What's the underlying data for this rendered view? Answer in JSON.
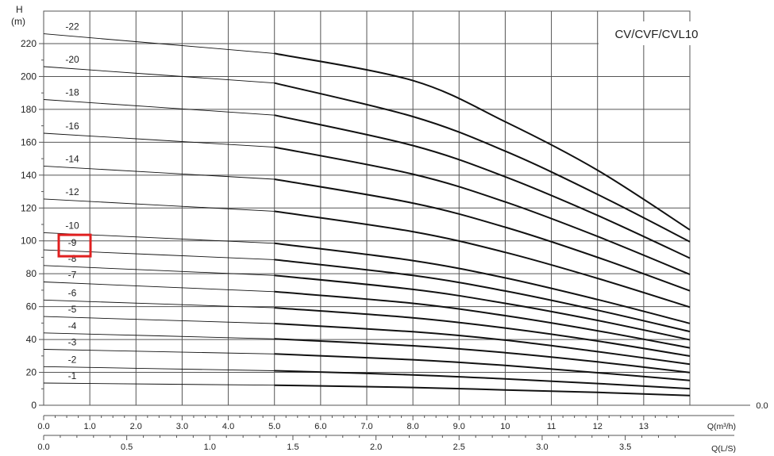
{
  "chart_data": {
    "type": "line",
    "title": "CV/CVF/CVL10",
    "ylabel": "H",
    "yunit": "(m)",
    "xlabel": "Q(m³/h)",
    "x2label": "Q(L/S)",
    "xlim": [
      0,
      14
    ],
    "ylim": [
      0,
      230
    ],
    "yticks": [
      "0",
      "20",
      "40",
      "60",
      "80",
      "100",
      "120",
      "140",
      "160",
      "180",
      "200",
      "220"
    ],
    "xticks": [
      "0.0",
      "1.0",
      "2.0",
      "3.0",
      "4.0",
      "5.0",
      "6.0",
      "7.0",
      "8.0",
      "9.0",
      "10",
      "11",
      "12",
      "13"
    ],
    "xticks_end": "0.0",
    "x2ticks": [
      "0.0",
      "0.5",
      "1.0",
      "1.5",
      "2.0",
      "2.5",
      "3.0",
      "3.5"
    ],
    "x2ticks_values": [
      0,
      0.5,
      1.0,
      1.5,
      2.0,
      2.5,
      3.0,
      3.5
    ],
    "grid": true,
    "highlight": "-9",
    "highlight_color": "#e02020",
    "line_color": "#111111",
    "grid_color": "#555555",
    "operating_range_start": 5.0,
    "series": [
      {
        "name": "-1",
        "values": [
          [
            0,
            13.5
          ],
          [
            5,
            12.2
          ],
          [
            8,
            10.8
          ],
          [
            10,
            9.3
          ],
          [
            12,
            7.8
          ],
          [
            14,
            5.9
          ]
        ]
      },
      {
        "name": "-2",
        "values": [
          [
            0,
            23.5
          ],
          [
            5,
            21.0
          ],
          [
            8,
            18.5
          ],
          [
            10,
            16.0
          ],
          [
            12,
            13.2
          ],
          [
            14,
            10.1
          ]
        ]
      },
      {
        "name": "-3",
        "values": [
          [
            0,
            34
          ],
          [
            5,
            31.2
          ],
          [
            8,
            27.7
          ],
          [
            10,
            24.2
          ],
          [
            12,
            19.8
          ],
          [
            14,
            15.1
          ]
        ]
      },
      {
        "name": "-4",
        "values": [
          [
            0,
            44
          ],
          [
            5,
            40.4
          ],
          [
            8,
            36.2
          ],
          [
            10,
            32.0
          ],
          [
            12,
            26.4
          ],
          [
            14,
            19.9
          ]
        ]
      },
      {
        "name": "-5",
        "values": [
          [
            0,
            54
          ],
          [
            5,
            49.7
          ],
          [
            8,
            44.7
          ],
          [
            10,
            39.6
          ],
          [
            12,
            32.6
          ],
          [
            14,
            25.0
          ]
        ]
      },
      {
        "name": "-6",
        "values": [
          [
            0,
            64
          ],
          [
            5,
            59.3
          ],
          [
            8,
            53.2
          ],
          [
            10,
            47.0
          ],
          [
            12,
            39.1
          ],
          [
            14,
            29.9
          ]
        ]
      },
      {
        "name": "-7",
        "values": [
          [
            0,
            75
          ],
          [
            5,
            69.1
          ],
          [
            8,
            62.0
          ],
          [
            10,
            54.5
          ],
          [
            12,
            45.3
          ],
          [
            14,
            34.9
          ]
        ]
      },
      {
        "name": "-8",
        "values": [
          [
            0,
            85
          ],
          [
            5,
            79.0
          ],
          [
            8,
            70.5
          ],
          [
            10,
            62.0
          ],
          [
            12,
            51.6
          ],
          [
            14,
            39.8
          ]
        ]
      },
      {
        "name": "-9",
        "values": [
          [
            0,
            94.5
          ],
          [
            5,
            88.6
          ],
          [
            8,
            79.0
          ],
          [
            10,
            69.5
          ],
          [
            12,
            57.8
          ],
          [
            14,
            44.8
          ]
        ]
      },
      {
        "name": "-10",
        "values": [
          [
            0,
            105
          ],
          [
            5,
            98.5
          ],
          [
            8,
            88.0
          ],
          [
            10,
            77.5
          ],
          [
            12,
            64.3
          ],
          [
            14,
            49.8
          ]
        ]
      },
      {
        "name": "-12",
        "values": [
          [
            0,
            125.5
          ],
          [
            5,
            118.0
          ],
          [
            8,
            105.6
          ],
          [
            10,
            93.0
          ],
          [
            12,
            77.2
          ],
          [
            14,
            59.7
          ]
        ]
      },
      {
        "name": "-14",
        "values": [
          [
            0,
            145.5
          ],
          [
            5,
            137.5
          ],
          [
            8,
            123.0
          ],
          [
            10,
            108.3
          ],
          [
            12,
            90.0
          ],
          [
            14,
            69.6
          ]
        ]
      },
      {
        "name": "-16",
        "values": [
          [
            0,
            165.5
          ],
          [
            5,
            157.0
          ],
          [
            8,
            140.6
          ],
          [
            10,
            123.7
          ],
          [
            12,
            102.7
          ],
          [
            14,
            79.6
          ]
        ]
      },
      {
        "name": "-18",
        "values": [
          [
            0,
            186
          ],
          [
            5,
            176.5
          ],
          [
            8,
            158.0
          ],
          [
            10,
            139.0
          ],
          [
            12,
            115.5
          ],
          [
            14,
            89.5
          ]
        ]
      },
      {
        "name": "-20",
        "values": [
          [
            0,
            206
          ],
          [
            5,
            196.0
          ],
          [
            8,
            175.6
          ],
          [
            10,
            154.6
          ],
          [
            12,
            128.3
          ],
          [
            14,
            99.5
          ]
        ]
      },
      {
        "name": "-22",
        "values": [
          [
            0,
            226
          ],
          [
            5,
            214.0
          ],
          [
            8,
            197.5
          ],
          [
            10,
            172.5
          ],
          [
            12,
            143.0
          ],
          [
            14,
            106.7
          ]
        ]
      }
    ]
  }
}
